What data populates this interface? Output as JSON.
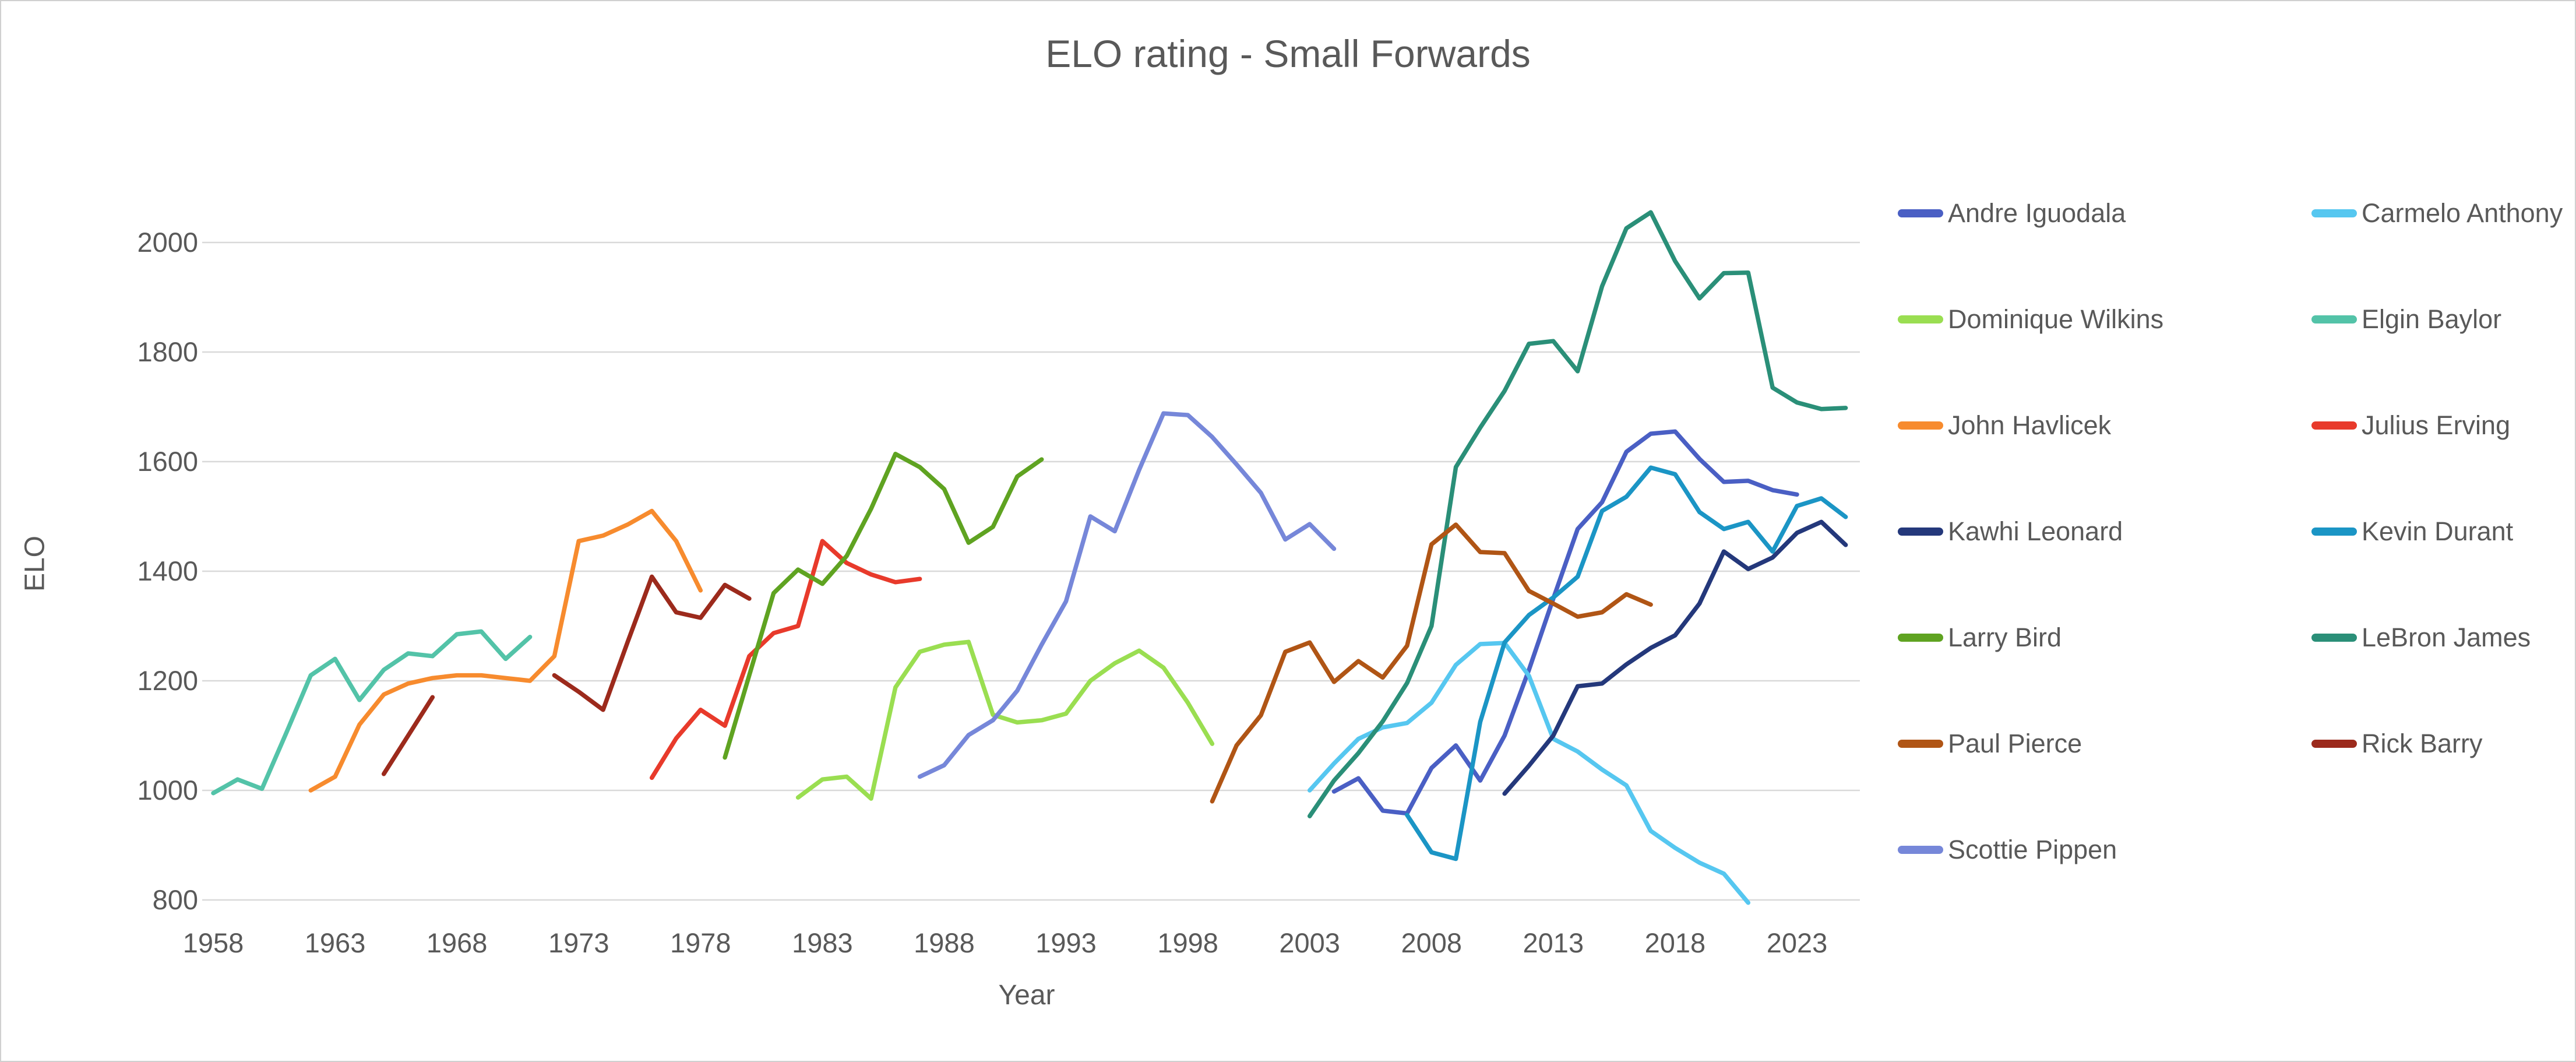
{
  "chart_data": {
    "type": "line",
    "title": "ELO rating - Small Forwards",
    "xlabel": "Year",
    "ylabel": "ELO",
    "x_ticks": [
      1958,
      1963,
      1968,
      1973,
      1978,
      1983,
      1988,
      1993,
      1998,
      2003,
      2008,
      2013,
      2018,
      2023
    ],
    "y_ticks": [
      800,
      1000,
      1200,
      1400,
      1600,
      1800,
      2000
    ],
    "ylim": [
      800,
      2000
    ],
    "xlim": [
      1956,
      2026
    ],
    "grid": "horizontal-only",
    "legend_position": "right-two-columns",
    "text_color": "#595959",
    "gridline_color": "#d9d9d9",
    "series": [
      {
        "name": "Andre Iguodala",
        "color": "#4a5fc4",
        "start_year": 2004,
        "values": [
          998,
          1022,
          963,
          958,
          1041,
          1082,
          1018,
          1100,
          1220,
          1350,
          1477,
          1526,
          1618,
          1651,
          1655,
          1605,
          1563,
          1565,
          1548,
          1540
        ]
      },
      {
        "name": "Carmelo Anthony",
        "color": "#56c7f0",
        "start_year": 2003,
        "values": [
          1000,
          1049,
          1094,
          1115,
          1123,
          1160,
          1229,
          1267,
          1269,
          1209,
          1094,
          1071,
          1038,
          1009,
          926,
          895,
          868,
          848,
          795
        ]
      },
      {
        "name": "Dominique Wilkins",
        "color": "#9ade51",
        "start_year": 1982,
        "values": [
          987,
          1020,
          1025,
          985,
          1188,
          1253,
          1266,
          1271,
          1138,
          1124,
          1128,
          1140,
          1200,
          1232,
          1255,
          1224,
          1160,
          1085
        ]
      },
      {
        "name": "Elgin Baylor",
        "color": "#53c3a8",
        "start_year": 1958,
        "values": [
          995,
          1020,
          1003,
          1105,
          1210,
          1240,
          1165,
          1220,
          1250,
          1245,
          1285,
          1290,
          1240,
          1280
        ]
      },
      {
        "name": "John Havlicek",
        "color": "#f78b2e",
        "start_year": 1962,
        "values": [
          1000,
          1025,
          1120,
          1175,
          1195,
          1205,
          1210,
          1210,
          1205,
          1200,
          1245,
          1455,
          1465,
          1485,
          1510,
          1455,
          1365
        ]
      },
      {
        "name": "Julius Erving",
        "color": "#e83a2b",
        "start_year": 1976,
        "values": [
          1023,
          1095,
          1147,
          1118,
          1245,
          1287,
          1300,
          1455,
          1415,
          1394,
          1380,
          1386
        ]
      },
      {
        "name": "Kawhi Leonard",
        "color": "#24387b",
        "start_year": 2011,
        "values": [
          994,
          1045,
          1100,
          1190,
          1195,
          1230,
          1260,
          1283,
          1341,
          1436,
          1404,
          1425,
          1470,
          1490,
          1448
        ]
      },
      {
        "name": "Kevin Durant",
        "color": "#1b95c5",
        "start_year": 2007,
        "values": [
          955,
          887,
          875,
          1125,
          1270,
          1320,
          1352,
          1390,
          1510,
          1536,
          1589,
          1577,
          1508,
          1477,
          1490,
          1436,
          1519,
          1533,
          1499
        ]
      },
      {
        "name": "Larry Bird",
        "color": "#5fa321",
        "start_year": 1979,
        "values": [
          1060,
          1210,
          1360,
          1403,
          1377,
          1428,
          1514,
          1614,
          1590,
          1550,
          1452,
          1481,
          1573,
          1604
        ]
      },
      {
        "name": "LeBron James",
        "color": "#2a8f78",
        "start_year": 2003,
        "values": [
          953,
          1018,
          1068,
          1126,
          1196,
          1300,
          1590,
          1662,
          1729,
          1815,
          1820,
          1765,
          1920,
          2026,
          2055,
          1966,
          1898,
          1944,
          1945,
          1735,
          1708,
          1696,
          1698
        ]
      },
      {
        "name": "Paul Pierce",
        "color": "#b05515",
        "start_year": 1999,
        "values": [
          980,
          1082,
          1137,
          1253,
          1270,
          1198,
          1236,
          1206,
          1264,
          1449,
          1485,
          1435,
          1433,
          1364,
          1341,
          1317,
          1325,
          1358,
          1339
        ]
      },
      {
        "name": "Rick Barry",
        "color": "#9c2a1c",
        "start_year": 1965,
        "values": [
          1030,
          1100,
          1170,
          null,
          null,
          null,
          null,
          1210,
          1180,
          1147,
          1270,
          1390,
          1325,
          1315,
          1375,
          1350
        ]
      },
      {
        "name": "Scottie Pippen",
        "color": "#7687d9",
        "start_year": 1987,
        "values": [
          1025,
          1046,
          1101,
          1128,
          1182,
          1266,
          1345,
          1500,
          1473,
          1585,
          1688,
          1685,
          1645,
          1595,
          1543,
          1458,
          1486,
          1441
        ]
      }
    ]
  }
}
